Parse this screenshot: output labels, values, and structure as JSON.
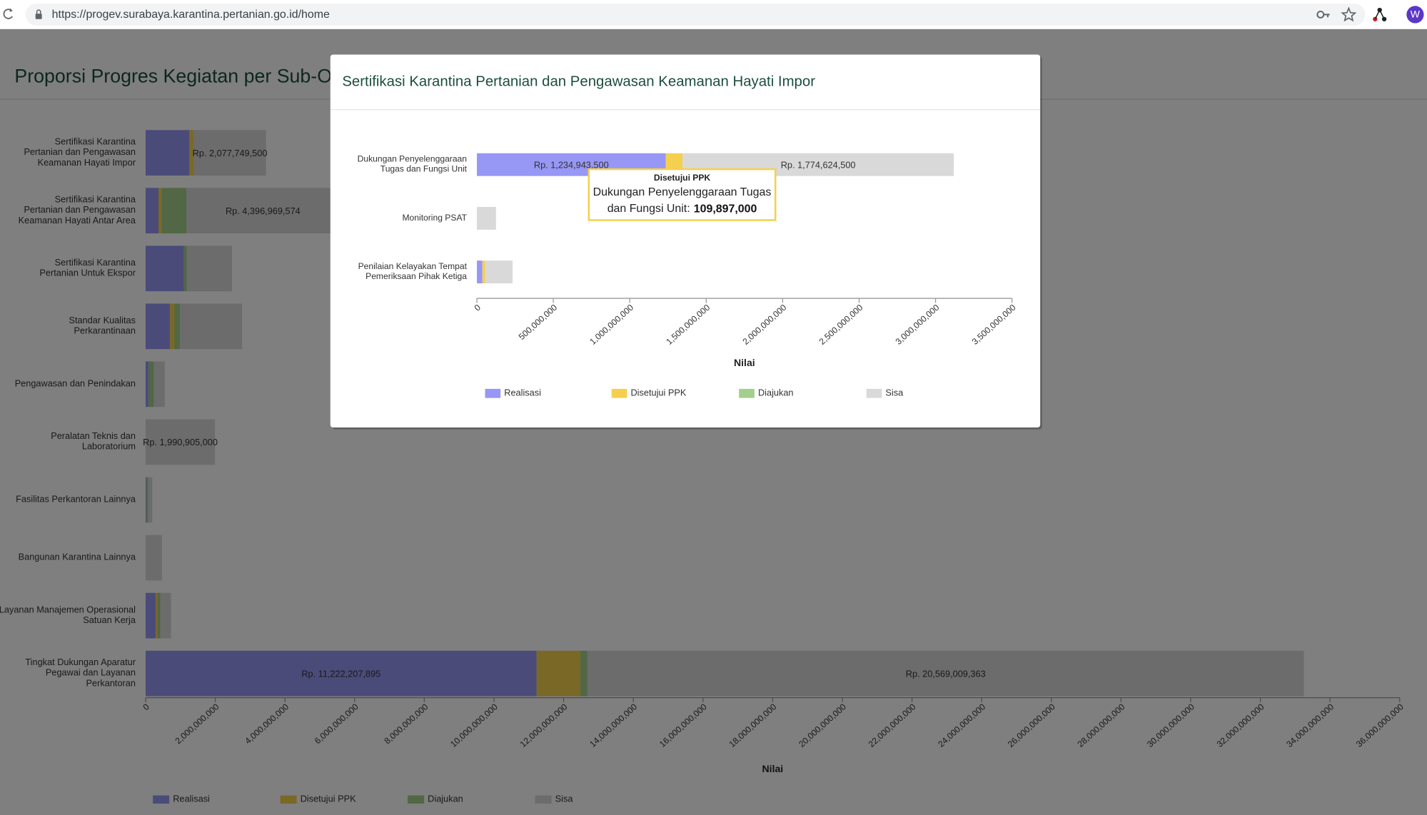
{
  "browser": {
    "url": "https://progev.surabaya.karantina.pertanian.go.id/home",
    "avatar": "W"
  },
  "page": {
    "title": "Proporsi Progres Kegiatan per Sub-Ou"
  },
  "chart_data": [
    {
      "type": "bar",
      "stacked": true,
      "horizontal": true,
      "x_label": "Nilai",
      "legend": "bottom",
      "grid": false,
      "categories": [
        "Sertifikasi Karantina Pertanian dan Pengawasan Keamanan Hayati Impor",
        "Sertifikasi Karantina Pertanian dan Pengawasan Keamanan Hayati Antar Area",
        "Sertifikasi Karantina Pertanian Untuk Ekspor",
        "Standar Kualitas Perkarantinaan",
        "Pengawasan dan Penindakan",
        "Peralatan Teknis dan Laboratorium",
        "Fasilitas Perkantoran Lainnya",
        "Bangunan Karantina Lainnya",
        "Layanan Manajemen Operasional Satuan Kerja",
        "Tingkat Dukungan Aparatur Pegawai dan Layanan Perkantoran"
      ],
      "series": [
        {
          "name": "Realisasi",
          "color": "#9797f5",
          "values": [
            1250000000,
            370000000,
            1100000000,
            700000000,
            80000000,
            0,
            20000000,
            0,
            290000000,
            11222207895
          ],
          "value_labels": [
            null,
            null,
            null,
            null,
            null,
            null,
            null,
            null,
            null,
            "Rp. 11,222,207,895"
          ]
        },
        {
          "name": "Disetujui PPK",
          "color": "#f5d04f",
          "values": [
            130000000,
            100000000,
            0,
            130000000,
            0,
            0,
            0,
            0,
            50000000,
            1260000000
          ]
        },
        {
          "name": "Diajukan",
          "color": "#a3cf8c",
          "values": [
            0,
            700000000,
            80000000,
            160000000,
            160000000,
            0,
            50000000,
            0,
            80000000,
            200000000
          ]
        },
        {
          "name": "Sisa",
          "color": "#d9d9d9",
          "values": [
            2077749500,
            4396969574,
            1300000000,
            1780000000,
            310000000,
            1990905000,
            120000000,
            470000000,
            310000000,
            20569009363
          ],
          "value_labels": [
            "Rp. 2,077,749,500",
            "Rp. 4,396,969,574",
            null,
            null,
            null,
            "Rp. 1,990,905,000",
            null,
            null,
            null,
            "Rp. 20,569,009,363"
          ]
        }
      ],
      "xlim": [
        0,
        36000000000
      ],
      "xticks": [
        0,
        {
          "value": 2000000000,
          "label": "2,000,000,000"
        },
        {
          "value": 4000000000,
          "label": "4,000,000,000"
        },
        {
          "value": 6000000000,
          "label": "6,000,000,000"
        },
        {
          "value": 8000000000,
          "label": "8,000,000,000"
        },
        {
          "value": 10000000000,
          "label": "10,000,000,000"
        },
        {
          "value": 12000000000,
          "label": "12,000,000,000"
        },
        {
          "value": 14000000000,
          "label": "14,000,000,000"
        },
        {
          "value": 16000000000,
          "label": "16,000,000,000"
        },
        {
          "value": 18000000000,
          "label": "18,000,000,000"
        },
        {
          "value": 20000000000,
          "label": "20,000,000,000"
        },
        {
          "value": 22000000000,
          "label": "22,000,000,000"
        },
        {
          "value": 24000000000,
          "label": "24,000,000,000"
        },
        {
          "value": 26000000000,
          "label": "26,000,000,000"
        },
        {
          "value": 28000000000,
          "label": "28,000,000,000"
        },
        {
          "value": 30000000000,
          "label": "30,000,000,000"
        },
        {
          "value": 32000000000,
          "label": "32,000,000,000"
        },
        {
          "value": 34000000000,
          "label": "34,000,000,000"
        },
        {
          "value": 36000000000,
          "label": "36,000,000,000"
        }
      ]
    },
    {
      "type": "bar",
      "stacked": true,
      "horizontal": true,
      "title": "Sertifikasi Karantina Pertanian dan Pengawasan Keamanan Hayati Impor",
      "x_label": "Nilai",
      "legend": "bottom",
      "grid": false,
      "categories": [
        "Dukungan Penyelenggaraan Tugas dan Fungsi Unit",
        "Monitoring PSAT",
        "Penilaian Kelayakan Tempat Pemeriksaan Pihak Ketiga"
      ],
      "series": [
        {
          "name": "Realisasi",
          "color": "#9797f5",
          "values": [
            1234943500,
            0,
            36000000
          ],
          "value_labels": [
            "Rp. 1,234,943,500",
            null,
            null
          ]
        },
        {
          "name": "Disetujui PPK",
          "color": "#f5d04f",
          "values": [
            109897000,
            0,
            18000000
          ]
        },
        {
          "name": "Diajukan",
          "color": "#a3cf8c",
          "values": [
            0,
            0,
            0
          ]
        },
        {
          "name": "Sisa",
          "color": "#d9d9d9",
          "values": [
            1774624500,
            125000000,
            180000000
          ],
          "value_labels": [
            "Rp. 1,774,624,500",
            null,
            null
          ]
        }
      ],
      "xlim": [
        0,
        3500000000
      ],
      "xticks": [
        0,
        {
          "value": 500000000,
          "label": "500,000,000"
        },
        {
          "value": 1000000000,
          "label": "1,000,000,000"
        },
        {
          "value": 1500000000,
          "label": "1,500,000,000"
        },
        {
          "value": 2000000000,
          "label": "2,000,000,000"
        },
        {
          "value": 2500000000,
          "label": "2,500,000,000"
        },
        {
          "value": 3000000000,
          "label": "3,000,000,000"
        },
        {
          "value": 3500000000,
          "label": "3,500,000,000"
        }
      ],
      "tooltip": {
        "title": "Disetujui PPK",
        "label": "Dukungan Penyelenggaraan Tugas dan Fungsi Unit:",
        "value": "109,897,000"
      }
    }
  ]
}
